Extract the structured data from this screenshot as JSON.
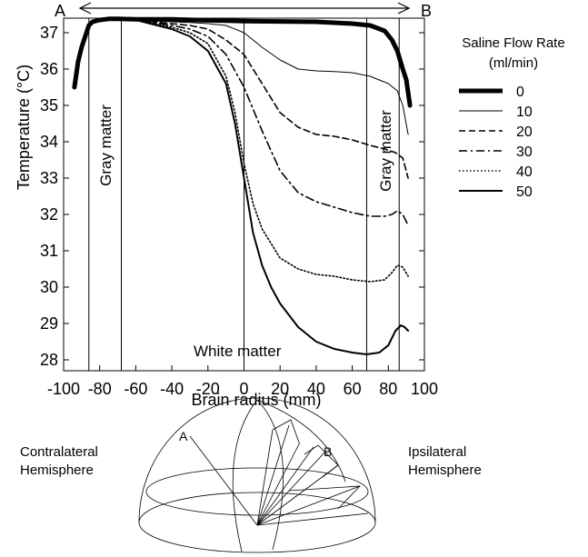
{
  "chart_data": {
    "type": "line",
    "title": "",
    "xlabel": "Brain radius (mm)",
    "ylabel": "Temperature (°C)",
    "xlim": [
      -100,
      100
    ],
    "ylim": [
      27.7,
      37.4
    ],
    "x_ticks": [
      -100,
      -80,
      -60,
      -40,
      -20,
      0,
      20,
      40,
      60,
      80,
      100
    ],
    "y_ticks": [
      28,
      29,
      30,
      31,
      32,
      33,
      34,
      35,
      36,
      37
    ],
    "grid": false,
    "legend": {
      "title": "Saline Flow Rate\n(ml/min)",
      "placement": "right"
    },
    "reference_lines_x": [
      -86,
      -68,
      0,
      68,
      86
    ],
    "region_labels": [
      {
        "text": "Gray matter",
        "x": -80
      },
      {
        "text": "White matter",
        "x": 0
      },
      {
        "text": "Gray matter",
        "x": 77
      }
    ],
    "arrow": {
      "start_label": "A",
      "end_label": "B"
    },
    "series": [
      {
        "name": "0",
        "style": "thick",
        "x": [
          -94,
          -92,
          -90,
          -88,
          -86,
          -84,
          -80,
          -75,
          -70,
          -60,
          -40,
          -20,
          0,
          20,
          40,
          60,
          70,
          78,
          82,
          85,
          88,
          90,
          92
        ],
        "y": [
          35.5,
          36.2,
          36.6,
          36.9,
          37.2,
          37.3,
          37.35,
          37.38,
          37.38,
          37.37,
          37.37,
          37.34,
          37.32,
          37.31,
          37.3,
          37.25,
          37.2,
          37.05,
          36.8,
          36.5,
          36.0,
          35.7,
          35.0
        ]
      },
      {
        "name": "10",
        "style": "thin",
        "x": [
          -85,
          -75,
          -60,
          -40,
          -30,
          -20,
          -10,
          0,
          10,
          20,
          30,
          40,
          50,
          60,
          70,
          80,
          85,
          88,
          91
        ],
        "y": [
          37.3,
          37.35,
          37.35,
          37.3,
          37.28,
          37.25,
          37.2,
          37.0,
          36.6,
          36.25,
          36.0,
          35.95,
          35.93,
          35.9,
          35.8,
          35.6,
          35.4,
          35.0,
          34.2
        ]
      },
      {
        "name": "20",
        "style": "dashed",
        "x": [
          -85,
          -75,
          -60,
          -40,
          -30,
          -20,
          -10,
          0,
          10,
          20,
          30,
          40,
          50,
          60,
          70,
          78,
          84,
          88,
          91
        ],
        "y": [
          37.3,
          37.35,
          37.35,
          37.25,
          37.2,
          37.1,
          36.8,
          36.4,
          35.6,
          34.8,
          34.4,
          34.2,
          34.15,
          34.05,
          33.9,
          33.8,
          33.7,
          33.55,
          33.0
        ]
      },
      {
        "name": "30",
        "style": "dashdot",
        "x": [
          -85,
          -75,
          -60,
          -40,
          -30,
          -20,
          -10,
          0,
          10,
          20,
          30,
          40,
          50,
          60,
          70,
          78,
          82,
          85,
          88,
          91
        ],
        "y": [
          37.3,
          37.35,
          37.35,
          37.2,
          37.1,
          36.9,
          36.4,
          35.5,
          34.3,
          33.2,
          32.6,
          32.35,
          32.2,
          32.05,
          31.95,
          31.95,
          32.0,
          32.1,
          32.0,
          31.7
        ]
      },
      {
        "name": "40",
        "style": "dotted",
        "x": [
          -85,
          -75,
          -60,
          -40,
          -30,
          -20,
          -10,
          -5,
          0,
          5,
          10,
          20,
          30,
          40,
          50,
          60,
          70,
          78,
          82,
          85,
          88,
          91
        ],
        "y": [
          37.3,
          37.35,
          37.35,
          37.15,
          37.0,
          36.7,
          35.8,
          34.8,
          33.4,
          32.3,
          31.6,
          30.8,
          30.5,
          30.35,
          30.3,
          30.2,
          30.15,
          30.2,
          30.4,
          30.6,
          30.55,
          30.3
        ]
      },
      {
        "name": "50",
        "style": "solid",
        "x": [
          -85,
          -75,
          -60,
          -40,
          -30,
          -20,
          -10,
          -5,
          0,
          5,
          10,
          15,
          20,
          30,
          40,
          50,
          60,
          68,
          75,
          80,
          84,
          87,
          89,
          91
        ],
        "y": [
          37.3,
          37.35,
          37.35,
          37.1,
          36.9,
          36.5,
          35.6,
          34.5,
          33.0,
          31.5,
          30.6,
          30.0,
          29.55,
          28.9,
          28.5,
          28.3,
          28.2,
          28.15,
          28.2,
          28.4,
          28.8,
          28.95,
          28.9,
          28.8
        ]
      }
    ]
  },
  "diagram": {
    "left_label": "Contralateral\nHemisphere",
    "right_label": "Ipsilateral\nHemisphere",
    "point_a": "A",
    "point_b": "B"
  }
}
